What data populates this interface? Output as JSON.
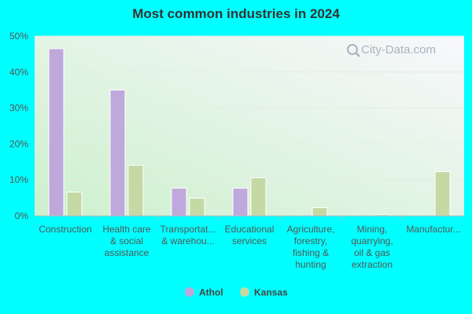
{
  "chart_data": {
    "type": "bar",
    "title": "Most common industries in 2024",
    "categories": [
      [
        "Construction"
      ],
      [
        "Health care",
        "& social",
        "assistance"
      ],
      [
        "Transportat...",
        "& warehou..."
      ],
      [
        "Educational",
        "services"
      ],
      [
        "Agriculture,",
        "forestry,",
        "fishing &",
        "hunting"
      ],
      [
        "Mining,",
        "quarrying,",
        "oil & gas",
        "extraction"
      ],
      [
        "Manufactur..."
      ]
    ],
    "series": [
      {
        "name": "Athol",
        "color": "#bfa9dc",
        "values": [
          46.5,
          35,
          7.7,
          7.7,
          0,
          0,
          0
        ]
      },
      {
        "name": "Kansas",
        "color": "#c5d9a4",
        "values": [
          6.6,
          14.1,
          4.9,
          10.6,
          2.3,
          0.4,
          12.3
        ]
      }
    ],
    "yticks": [
      "0%",
      "10%",
      "20%",
      "30%",
      "40%",
      "50%"
    ],
    "ylim": [
      0,
      50
    ],
    "grid": true,
    "legend": "bottom-center"
  },
  "watermark": "City-Data.com"
}
